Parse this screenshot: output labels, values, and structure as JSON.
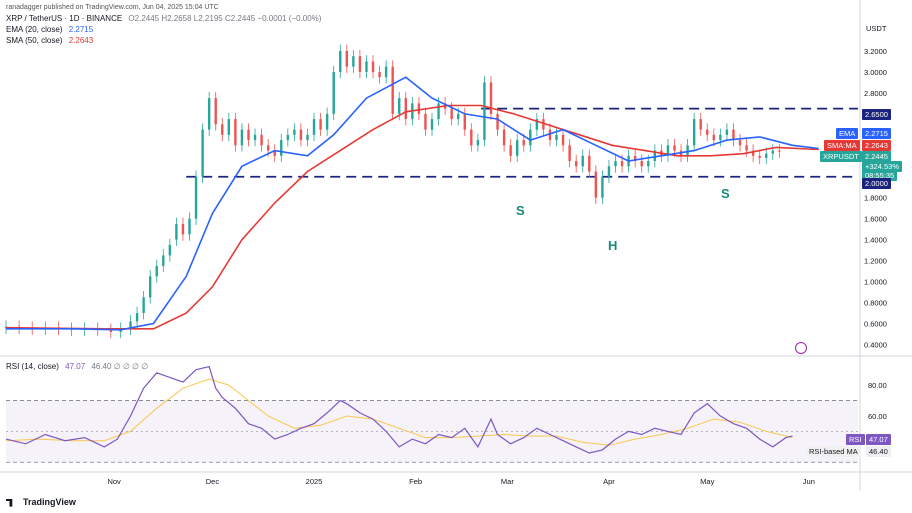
{
  "publisher": "ranadagger published on TradingView.com, Jun 04, 2025 15:04 UTC",
  "header": {
    "symbol": "XRP / TetherUS · 1D · BINANCE",
    "ohlc": "O2.2445 H2.2658 L2.2195 C2.2445 −0.0001 (−0.00%)",
    "ema_label": "EMA (20, close)",
    "ema_value": "2.2715",
    "sma_label": "SMA (50, close)",
    "sma_value": "2.2643",
    "rsi_label": "RSI (14, close)",
    "rsi_value": "47.07",
    "rsi_extra": "46.40 ∅ ∅ ∅ ∅",
    "currency": "USDT"
  },
  "tags": {
    "level_top": "2.6500",
    "ema_name": "EMA",
    "ema_val": "2.2715",
    "sma_name": "SMA:MA",
    "sma_val": "2.2643",
    "pair": "XRPUSDT",
    "price": "2.2445",
    "change": "+324.53%",
    "countdown": "08:55:35",
    "level_bottom": "2.0000",
    "rsi_name": "RSI",
    "rsi_val": "47.07",
    "rsima_name": "RSI-based MA",
    "rsima_val": "46.40"
  },
  "annotations": {
    "left_shoulder": "S",
    "head": "H",
    "right_shoulder": "S"
  },
  "footer": {
    "brand": "TradingView"
  },
  "colors": {
    "up": "#26a69a",
    "down": "#ef5350",
    "ema": "#2962ff",
    "sma": "#e53935",
    "level": "#1a237e",
    "rsi": "#7e57c2",
    "rsi_ma": "#f9c74f",
    "label_green": "#1a8a7a"
  },
  "chart_data": [
    {
      "type": "candlestick",
      "yaxis_ticks": [
        "3.2000",
        "3.0000",
        "2.8000",
        "2.6000",
        "2.4000",
        "2.2000",
        "2.0000",
        "1.8000",
        "1.6000",
        "1.4000",
        "1.2000",
        "1.0000",
        "0.8000",
        "0.6000",
        "0.4000"
      ],
      "ylim": [
        0.3,
        3.4
      ],
      "xaxis_ticks": [
        {
          "label": "Nov",
          "day": 33
        },
        {
          "label": "Dec",
          "day": 63
        },
        {
          "label": "2025",
          "day": 94
        },
        {
          "label": "Feb",
          "day": 125
        },
        {
          "label": "Mar",
          "day": 153
        },
        {
          "label": "Apr",
          "day": 184
        },
        {
          "label": "May",
          "day": 214
        },
        {
          "label": "Jun",
          "day": 245
        }
      ],
      "xlim": [
        0,
        260
      ],
      "horizontal_levels": [
        2.65,
        2.0
      ],
      "ema_20": [
        [
          0,
          0.55
        ],
        [
          20,
          0.55
        ],
        [
          35,
          0.54
        ],
        [
          45,
          0.6
        ],
        [
          55,
          1.05
        ],
        [
          63,
          1.65
        ],
        [
          72,
          2.1
        ],
        [
          82,
          2.25
        ],
        [
          92,
          2.2
        ],
        [
          100,
          2.4
        ],
        [
          110,
          2.75
        ],
        [
          122,
          2.95
        ],
        [
          130,
          2.75
        ],
        [
          140,
          2.6
        ],
        [
          150,
          2.55
        ],
        [
          160,
          2.35
        ],
        [
          170,
          2.45
        ],
        [
          180,
          2.3
        ],
        [
          190,
          2.15
        ],
        [
          200,
          2.2
        ],
        [
          210,
          2.25
        ],
        [
          220,
          2.35
        ],
        [
          230,
          2.38
        ],
        [
          240,
          2.3
        ],
        [
          248,
          2.27
        ]
      ],
      "sma_50": [
        [
          0,
          0.56
        ],
        [
          30,
          0.55
        ],
        [
          45,
          0.55
        ],
        [
          55,
          0.7
        ],
        [
          63,
          0.95
        ],
        [
          72,
          1.4
        ],
        [
          82,
          1.75
        ],
        [
          92,
          2.05
        ],
        [
          102,
          2.25
        ],
        [
          112,
          2.45
        ],
        [
          122,
          2.62
        ],
        [
          135,
          2.68
        ],
        [
          145,
          2.68
        ],
        [
          155,
          2.6
        ],
        [
          165,
          2.5
        ],
        [
          175,
          2.4
        ],
        [
          185,
          2.3
        ],
        [
          195,
          2.25
        ],
        [
          205,
          2.2
        ],
        [
          215,
          2.2
        ],
        [
          225,
          2.22
        ],
        [
          235,
          2.28
        ],
        [
          248,
          2.26
        ]
      ],
      "candles": [
        [
          0,
          0.56,
          0.57
        ],
        [
          4,
          0.57,
          0.56
        ],
        [
          8,
          0.56,
          0.55
        ],
        [
          12,
          0.55,
          0.56
        ],
        [
          16,
          0.56,
          0.55
        ],
        [
          20,
          0.55,
          0.54
        ],
        [
          24,
          0.54,
          0.55
        ],
        [
          28,
          0.55,
          0.54
        ],
        [
          32,
          0.54,
          0.52
        ],
        [
          35,
          0.52,
          0.55
        ],
        [
          38,
          0.55,
          0.62
        ],
        [
          40,
          0.62,
          0.7
        ],
        [
          42,
          0.7,
          0.85
        ],
        [
          44,
          0.85,
          1.05
        ],
        [
          46,
          1.05,
          1.15
        ],
        [
          48,
          1.15,
          1.25
        ],
        [
          50,
          1.25,
          1.35
        ],
        [
          52,
          1.4,
          1.55
        ],
        [
          54,
          1.55,
          1.45
        ],
        [
          56,
          1.45,
          1.6
        ],
        [
          58,
          1.6,
          2.0
        ],
        [
          60,
          2.0,
          2.45
        ],
        [
          62,
          2.45,
          2.75
        ],
        [
          64,
          2.75,
          2.5
        ],
        [
          66,
          2.5,
          2.4
        ],
        [
          68,
          2.4,
          2.55
        ],
        [
          70,
          2.55,
          2.3
        ],
        [
          72,
          2.3,
          2.45
        ],
        [
          74,
          2.45,
          2.35
        ],
        [
          76,
          2.35,
          2.4
        ],
        [
          78,
          2.4,
          2.3
        ],
        [
          80,
          2.3,
          2.25
        ],
        [
          82,
          2.25,
          2.2
        ],
        [
          84,
          2.2,
          2.35
        ],
        [
          86,
          2.35,
          2.4
        ],
        [
          88,
          2.4,
          2.45
        ],
        [
          90,
          2.45,
          2.35
        ],
        [
          92,
          2.35,
          2.4
        ],
        [
          94,
          2.4,
          2.55
        ],
        [
          96,
          2.55,
          2.45
        ],
        [
          98,
          2.45,
          2.6
        ],
        [
          100,
          2.6,
          3.0
        ],
        [
          102,
          3.0,
          3.2
        ],
        [
          104,
          3.2,
          3.05
        ],
        [
          106,
          3.05,
          3.15
        ],
        [
          108,
          3.15,
          3.0
        ],
        [
          110,
          3.0,
          3.1
        ],
        [
          112,
          3.1,
          3.0
        ],
        [
          114,
          3.0,
          2.95
        ],
        [
          116,
          2.95,
          3.05
        ],
        [
          118,
          3.05,
          2.6
        ],
        [
          120,
          2.6,
          2.75
        ],
        [
          122,
          2.75,
          2.55
        ],
        [
          124,
          2.55,
          2.7
        ],
        [
          126,
          2.7,
          2.6
        ],
        [
          128,
          2.6,
          2.45
        ],
        [
          130,
          2.45,
          2.55
        ],
        [
          132,
          2.55,
          2.7
        ],
        [
          134,
          2.7,
          2.65
        ],
        [
          136,
          2.65,
          2.55
        ],
        [
          138,
          2.55,
          2.6
        ],
        [
          140,
          2.6,
          2.45
        ],
        [
          142,
          2.45,
          2.3
        ],
        [
          144,
          2.3,
          2.35
        ],
        [
          146,
          2.35,
          2.9
        ],
        [
          148,
          2.9,
          2.6
        ],
        [
          150,
          2.6,
          2.45
        ],
        [
          152,
          2.45,
          2.3
        ],
        [
          154,
          2.3,
          2.2
        ],
        [
          156,
          2.2,
          2.35
        ],
        [
          158,
          2.35,
          2.3
        ],
        [
          160,
          2.3,
          2.45
        ],
        [
          162,
          2.45,
          2.55
        ],
        [
          164,
          2.55,
          2.45
        ],
        [
          166,
          2.45,
          2.35
        ],
        [
          168,
          2.35,
          2.4
        ],
        [
          170,
          2.4,
          2.3
        ],
        [
          172,
          2.3,
          2.15
        ],
        [
          174,
          2.15,
          2.1
        ],
        [
          176,
          2.1,
          2.2
        ],
        [
          178,
          2.2,
          2.05
        ],
        [
          180,
          2.05,
          1.8
        ],
        [
          182,
          1.8,
          2.0
        ],
        [
          184,
          2.0,
          2.1
        ],
        [
          186,
          2.1,
          2.15
        ],
        [
          188,
          2.15,
          2.1
        ],
        [
          190,
          2.1,
          2.2
        ],
        [
          192,
          2.2,
          2.15
        ],
        [
          194,
          2.15,
          2.1
        ],
        [
          196,
          2.1,
          2.15
        ],
        [
          198,
          2.15,
          2.25
        ],
        [
          200,
          2.25,
          2.2
        ],
        [
          202,
          2.2,
          2.3
        ],
        [
          204,
          2.3,
          2.25
        ],
        [
          206,
          2.25,
          2.2
        ],
        [
          208,
          2.2,
          2.3
        ],
        [
          210,
          2.3,
          2.55
        ],
        [
          212,
          2.55,
          2.45
        ],
        [
          214,
          2.45,
          2.4
        ],
        [
          216,
          2.4,
          2.35
        ],
        [
          218,
          2.35,
          2.4
        ],
        [
          220,
          2.4,
          2.45
        ],
        [
          222,
          2.45,
          2.35
        ],
        [
          224,
          2.35,
          2.3
        ],
        [
          226,
          2.3,
          2.25
        ],
        [
          228,
          2.25,
          2.2
        ],
        [
          230,
          2.2,
          2.18
        ],
        [
          232,
          2.18,
          2.22
        ],
        [
          234,
          2.22,
          2.25
        ],
        [
          236,
          2.25,
          2.24
        ]
      ]
    },
    {
      "type": "line",
      "name": "RSI",
      "yaxis_ticks": [
        "80.00",
        "60.00"
      ],
      "ylim": [
        25,
        95
      ],
      "bands": [
        70,
        30
      ],
      "rsi": [
        [
          0,
          45
        ],
        [
          6,
          42
        ],
        [
          12,
          48
        ],
        [
          18,
          44
        ],
        [
          24,
          46
        ],
        [
          30,
          40
        ],
        [
          34,
          45
        ],
        [
          38,
          60
        ],
        [
          42,
          78
        ],
        [
          46,
          88
        ],
        [
          50,
          85
        ],
        [
          54,
          82
        ],
        [
          58,
          90
        ],
        [
          62,
          92
        ],
        [
          64,
          78
        ],
        [
          66,
          72
        ],
        [
          70,
          65
        ],
        [
          74,
          55
        ],
        [
          78,
          52
        ],
        [
          82,
          45
        ],
        [
          86,
          48
        ],
        [
          90,
          52
        ],
        [
          94,
          55
        ],
        [
          98,
          62
        ],
        [
          102,
          70
        ],
        [
          104,
          68
        ],
        [
          108,
          62
        ],
        [
          112,
          58
        ],
        [
          116,
          50
        ],
        [
          120,
          40
        ],
        [
          124,
          45
        ],
        [
          128,
          42
        ],
        [
          132,
          48
        ],
        [
          136,
          46
        ],
        [
          140,
          52
        ],
        [
          144,
          40
        ],
        [
          148,
          58
        ],
        [
          150,
          48
        ],
        [
          154,
          42
        ],
        [
          158,
          46
        ],
        [
          162,
          52
        ],
        [
          166,
          48
        ],
        [
          170,
          44
        ],
        [
          174,
          40
        ],
        [
          178,
          36
        ],
        [
          182,
          38
        ],
        [
          186,
          45
        ],
        [
          190,
          50
        ],
        [
          194,
          48
        ],
        [
          198,
          52
        ],
        [
          202,
          50
        ],
        [
          206,
          48
        ],
        [
          210,
          62
        ],
        [
          214,
          68
        ],
        [
          218,
          60
        ],
        [
          222,
          55
        ],
        [
          226,
          52
        ],
        [
          230,
          45
        ],
        [
          234,
          40
        ],
        [
          238,
          46
        ],
        [
          240,
          47
        ]
      ],
      "rsi_ma": [
        [
          0,
          44
        ],
        [
          10,
          45
        ],
        [
          20,
          44
        ],
        [
          30,
          44
        ],
        [
          38,
          50
        ],
        [
          46,
          65
        ],
        [
          54,
          78
        ],
        [
          62,
          84
        ],
        [
          68,
          80
        ],
        [
          74,
          70
        ],
        [
          80,
          60
        ],
        [
          88,
          52
        ],
        [
          96,
          54
        ],
        [
          104,
          60
        ],
        [
          112,
          58
        ],
        [
          120,
          52
        ],
        [
          128,
          46
        ],
        [
          136,
          46
        ],
        [
          144,
          47
        ],
        [
          152,
          48
        ],
        [
          160,
          47
        ],
        [
          168,
          47
        ],
        [
          176,
          43
        ],
        [
          184,
          41
        ],
        [
          192,
          45
        ],
        [
          200,
          48
        ],
        [
          208,
          52
        ],
        [
          216,
          58
        ],
        [
          224,
          56
        ],
        [
          232,
          50
        ],
        [
          240,
          46
        ]
      ]
    }
  ]
}
